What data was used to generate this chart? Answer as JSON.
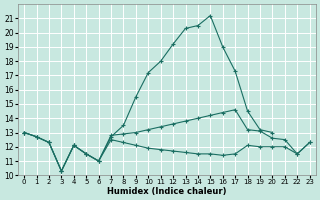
{
  "xlabel": "Humidex (Indice chaleur)",
  "xlim": [
    -0.5,
    23.5
  ],
  "ylim": [
    10,
    22
  ],
  "yticks": [
    10,
    11,
    12,
    13,
    14,
    15,
    16,
    17,
    18,
    19,
    20,
    21
  ],
  "xticks": [
    0,
    1,
    2,
    3,
    4,
    5,
    6,
    7,
    8,
    9,
    10,
    11,
    12,
    13,
    14,
    15,
    16,
    17,
    18,
    19,
    20,
    21,
    22,
    23
  ],
  "bg_color": "#c8e8e0",
  "grid_color": "#ffffff",
  "line_color": "#1a6e62",
  "series": [
    {
      "name": "peak_curve",
      "x": [
        0,
        1,
        2,
        3,
        4,
        5,
        6,
        7,
        8,
        9,
        10,
        11,
        12,
        13,
        14,
        15,
        16,
        17,
        18,
        19,
        20
      ],
      "y": [
        13.0,
        12.7,
        12.3,
        10.3,
        12.1,
        11.5,
        11.0,
        12.7,
        13.5,
        15.5,
        17.2,
        18.0,
        19.2,
        20.3,
        20.5,
        21.2,
        19.0,
        17.3,
        14.5,
        13.2,
        13.0
      ]
    },
    {
      "name": "upper_flat",
      "x": [
        0,
        1,
        2,
        3,
        4,
        5,
        6,
        7,
        8,
        9,
        10,
        11,
        12,
        13,
        14,
        15,
        16,
        17,
        18,
        19,
        20,
        21,
        22,
        23
      ],
      "y": [
        13.0,
        12.7,
        12.3,
        10.3,
        12.1,
        11.5,
        11.0,
        12.8,
        12.9,
        13.0,
        13.2,
        13.4,
        13.6,
        13.8,
        14.0,
        14.2,
        14.4,
        14.6,
        13.2,
        13.1,
        12.6,
        12.5,
        11.5,
        12.3
      ]
    },
    {
      "name": "lower_flat",
      "x": [
        0,
        1,
        2,
        3,
        4,
        5,
        6,
        7,
        8,
        9,
        10,
        11,
        12,
        13,
        14,
        15,
        16,
        17,
        18,
        19,
        20,
        21,
        22,
        23
      ],
      "y": [
        13.0,
        12.7,
        12.3,
        10.3,
        12.1,
        11.5,
        11.0,
        12.5,
        12.3,
        12.1,
        11.9,
        11.8,
        11.7,
        11.6,
        11.5,
        11.5,
        11.4,
        11.5,
        12.1,
        12.0,
        12.0,
        12.0,
        11.5,
        12.3
      ]
    }
  ]
}
